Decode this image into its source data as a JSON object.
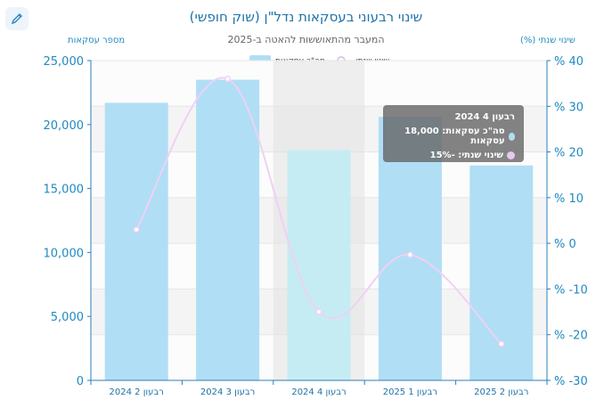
{
  "title": "שינוי רבעוני בעסקאות נדל\"ן (שוק חופשי)",
  "subtitle": "המעבר מהתאוששות להאטה ב-2025",
  "left_axis_title": "מספר עסקאות",
  "right_axis_title": "שינוי שנתי (%)",
  "legend": {
    "bar_label": "סה\"כ עסקאות",
    "line_label": "שינוי שנתי"
  },
  "tooltip": {
    "header": "רבעון 4 2024",
    "bar_line": "סה\"כ עסקאות: 18,000 עסקאות",
    "line_line": "שינוי שנתי: -15%"
  },
  "colors": {
    "bar": "#b0def5",
    "bar_highlight": "#c6ecf3",
    "line": "#efd1f3",
    "axis_text": "#1f8ac0",
    "title": "#1f72a8"
  },
  "chart_data": {
    "type": "bar",
    "categories": [
      "רבעון 2 2024",
      "רבעון 3 2024",
      "רבעון 4 2024",
      "רבעון 1 2025",
      "רבעון 2 2025"
    ],
    "series": [
      {
        "name": "סה\"כ עסקאות",
        "type": "bar",
        "axis": "left",
        "values": [
          21700,
          23500,
          18000,
          20600,
          16800
        ]
      },
      {
        "name": "שינוי שנתי",
        "type": "line",
        "axis": "right",
        "values": [
          3,
          36,
          -15,
          -2.5,
          -22
        ]
      }
    ],
    "y_left": {
      "range": [
        0,
        25000
      ],
      "ticks": [
        "0",
        "5,000",
        "10,000",
        "15,000",
        "20,000",
        "25,000"
      ]
    },
    "y_right": {
      "range": [
        -30,
        40
      ],
      "ticks": [
        "% -30",
        "% -20",
        "% -10",
        "% 0",
        "% 10",
        "% 20",
        "% 30",
        "% 40"
      ]
    },
    "highlighted_category": "רבעון 4 2024",
    "grid": true,
    "legend_position": "top-center"
  }
}
